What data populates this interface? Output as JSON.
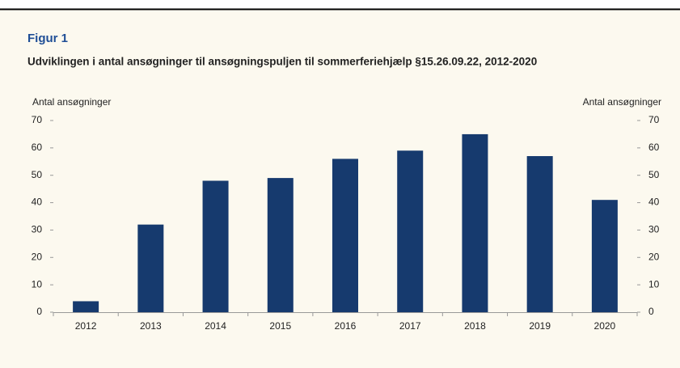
{
  "chart_data": {
    "type": "bar",
    "heading": "Figur 1",
    "title": "Udviklingen i antal ansøgninger til ansøgningspuljen til sommerferiehjælp §15.26.09.22, 2012-2020",
    "y_label": "Antal ansøgninger",
    "y2_label": "Antal ansøgninger",
    "categories": [
      "2012",
      "2013",
      "2014",
      "2015",
      "2016",
      "2017",
      "2018",
      "2019",
      "2020"
    ],
    "values": [
      4,
      32,
      48,
      49,
      56,
      59,
      65,
      57,
      41
    ],
    "color": "#163a6e",
    "ylim": [
      0,
      70
    ],
    "yticks": [
      0,
      10,
      20,
      30,
      40,
      50,
      60,
      70
    ],
    "y2lim": [
      0,
      70
    ],
    "y2ticks": [
      0,
      10,
      20,
      30,
      40,
      50,
      60,
      70
    ],
    "grid": false
  }
}
